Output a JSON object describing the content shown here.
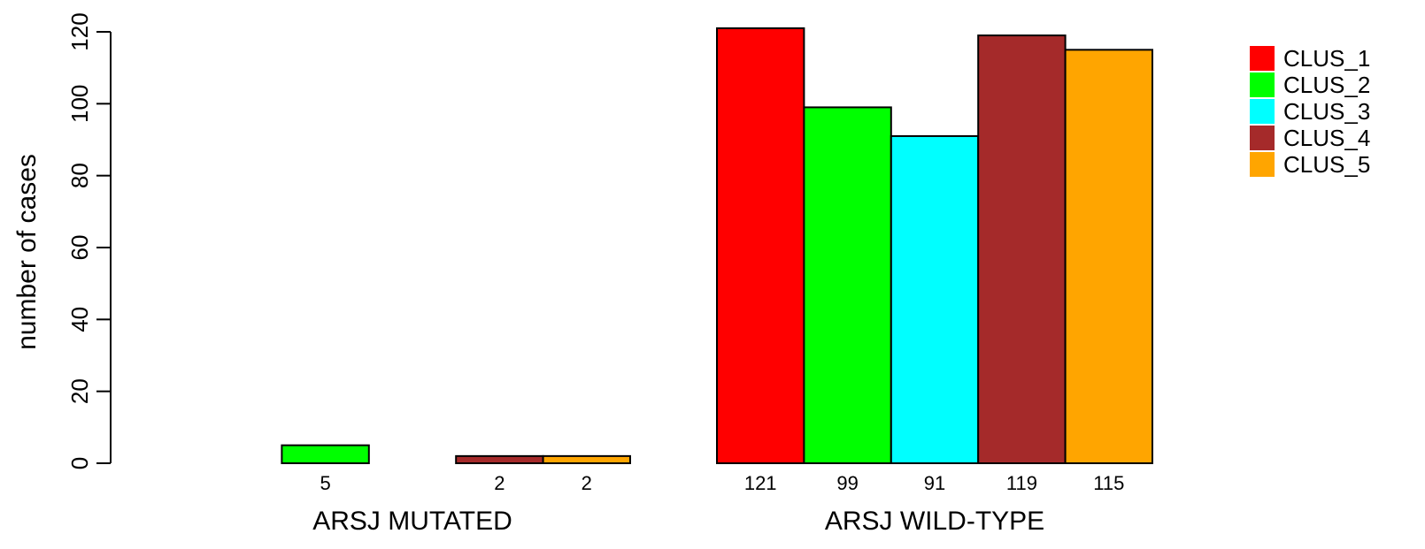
{
  "chart_data": {
    "type": "bar",
    "ylabel": "number of cases",
    "ylim": [
      0,
      120
    ],
    "yticks": [
      0,
      20,
      40,
      60,
      80,
      100,
      120
    ],
    "groups": [
      {
        "label": "ARSJ MUTATED",
        "values": [
          0,
          5,
          0,
          2,
          2
        ],
        "labels": [
          "",
          "5",
          "",
          "2",
          "2"
        ]
      },
      {
        "label": "ARSJ WILD-TYPE",
        "values": [
          121,
          99,
          91,
          119,
          115
        ],
        "labels": [
          "121",
          "99",
          "91",
          "119",
          "115"
        ]
      }
    ],
    "series": [
      {
        "name": "CLUS_1",
        "color": "#ff0000"
      },
      {
        "name": "CLUS_2",
        "color": "#00ff00"
      },
      {
        "name": "CLUS_3",
        "color": "#00ffff"
      },
      {
        "name": "CLUS_4",
        "color": "#a52a2a"
      },
      {
        "name": "CLUS_5",
        "color": "#ffa500"
      }
    ],
    "legend_position": "top-right"
  }
}
